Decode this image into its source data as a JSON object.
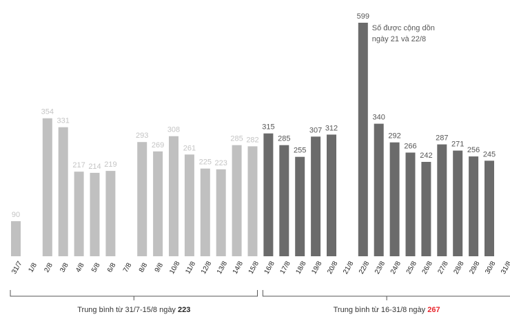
{
  "chart_data": {
    "type": "bar",
    "categories": [
      "31/7",
      "1/8",
      "2/8",
      "3/8",
      "4/8",
      "5/8",
      "6/8",
      "7/8",
      "8/8",
      "9/8",
      "10/8",
      "11/8",
      "12/8",
      "13/8",
      "14/8",
      "15/8",
      "16/8",
      "17/8",
      "18/8",
      "19/8",
      "20/8",
      "21/8",
      "22/8",
      "23/8",
      "24/8",
      "25/8",
      "26/8",
      "27/8",
      "28/8",
      "29/8",
      "30/8",
      "31/8"
    ],
    "values": [
      90,
      null,
      354,
      331,
      217,
      214,
      219,
      null,
      293,
      269,
      308,
      261,
      225,
      223,
      285,
      282,
      315,
      285,
      255,
      307,
      312,
      null,
      599,
      340,
      292,
      266,
      242,
      287,
      271,
      256,
      245,
      null
    ],
    "ylim": [
      0,
      599
    ],
    "colors": {
      "period1": "#c0c0c0",
      "period2": "#6b6b6b",
      "label_period1": "#c4c4c4",
      "label_period2": "#555555",
      "highlight": "#e8262d"
    },
    "annotations": [
      {
        "category": "22/8",
        "lines": [
          "Số được cộng dồn",
          "ngày 21 và 22/8"
        ]
      }
    ],
    "summaries": [
      {
        "text": "Trung bình từ 31/7-15/8 ngày ",
        "value": "223",
        "highlight": false
      },
      {
        "text": "Trung bình từ 16-31/8 ngày ",
        "value": "267",
        "highlight": true
      }
    ]
  }
}
